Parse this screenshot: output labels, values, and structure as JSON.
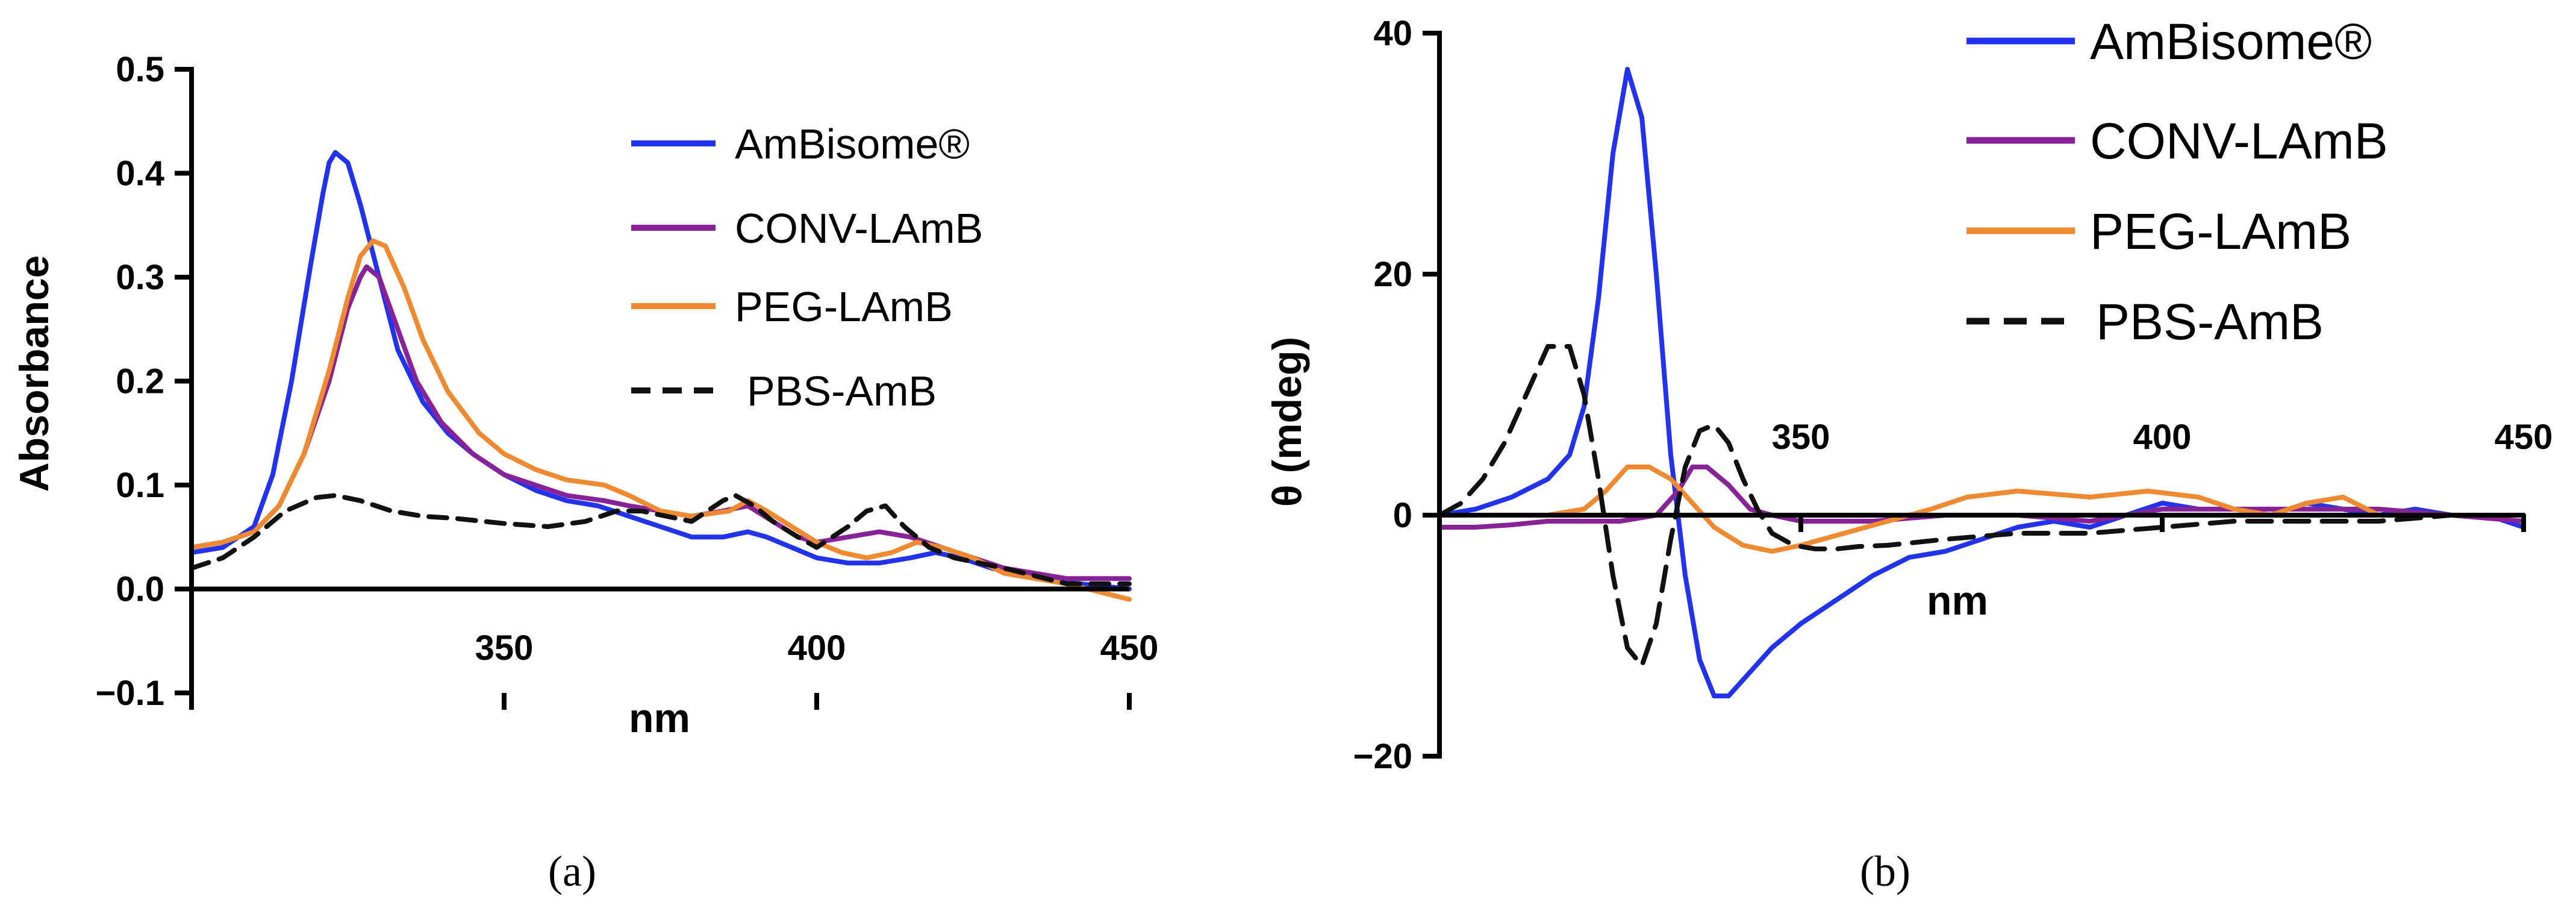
{
  "chart_data": [
    {
      "type": "line",
      "panel_label": "(a)",
      "xlabel": "nm",
      "ylabel": "Absorbance",
      "xlim": [
        300,
        450
      ],
      "ylim": [
        -0.1,
        0.5
      ],
      "xticks": [
        350,
        400,
        450
      ],
      "yticks": [
        -0.1,
        0.0,
        0.1,
        0.2,
        0.3,
        0.4,
        0.5
      ],
      "ytick_labels": [
        "−0.1",
        "0.0",
        "0.1",
        "0.2",
        "0.3",
        "0.4",
        "0.5"
      ],
      "legend_position": "top-right",
      "series": [
        {
          "name": "AmBisome®",
          "color": "#2233ee",
          "dash": "solid",
          "x": [
            300,
            305,
            310,
            313,
            316,
            319,
            321,
            322,
            323,
            325,
            327,
            330,
            333,
            337,
            341,
            345,
            350,
            355,
            360,
            365,
            370,
            375,
            380,
            385,
            389,
            392,
            396,
            400,
            405,
            410,
            415,
            419,
            423,
            428,
            435,
            442,
            450
          ],
          "y": [
            0.035,
            0.04,
            0.06,
            0.11,
            0.2,
            0.31,
            0.38,
            0.41,
            0.42,
            0.41,
            0.37,
            0.3,
            0.23,
            0.18,
            0.15,
            0.13,
            0.11,
            0.095,
            0.085,
            0.08,
            0.07,
            0.06,
            0.05,
            0.05,
            0.055,
            0.05,
            0.04,
            0.03,
            0.025,
            0.025,
            0.03,
            0.035,
            0.03,
            0.02,
            0.01,
            0.005,
            0.0
          ]
        },
        {
          "name": "CONV-LAmB",
          "color": "#882299",
          "dash": "solid",
          "x": [
            300,
            305,
            310,
            314,
            318,
            322,
            325,
            327,
            328,
            330,
            333,
            336,
            340,
            345,
            350,
            355,
            360,
            366,
            370,
            375,
            380,
            385,
            389,
            393,
            397,
            400,
            405,
            410,
            415,
            420,
            425,
            430,
            440,
            450
          ],
          "y": [
            0.04,
            0.045,
            0.055,
            0.08,
            0.13,
            0.2,
            0.27,
            0.3,
            0.31,
            0.3,
            0.25,
            0.2,
            0.16,
            0.13,
            0.11,
            0.1,
            0.09,
            0.085,
            0.08,
            0.075,
            0.07,
            0.075,
            0.08,
            0.065,
            0.05,
            0.045,
            0.05,
            0.055,
            0.05,
            0.04,
            0.03,
            0.02,
            0.01,
            0.01
          ]
        },
        {
          "name": "PEG-LAmB",
          "color": "#f08a30",
          "dash": "solid",
          "x": [
            300,
            305,
            310,
            314,
            318,
            322,
            325,
            327,
            329,
            331,
            334,
            337,
            341,
            346,
            350,
            355,
            360,
            366,
            370,
            375,
            380,
            386,
            389,
            392,
            396,
            400,
            404,
            408,
            412,
            416,
            420,
            425,
            430,
            440,
            450
          ],
          "y": [
            0.04,
            0.045,
            0.055,
            0.08,
            0.13,
            0.21,
            0.28,
            0.32,
            0.335,
            0.33,
            0.29,
            0.24,
            0.19,
            0.15,
            0.13,
            0.115,
            0.105,
            0.1,
            0.09,
            0.075,
            0.07,
            0.075,
            0.085,
            0.075,
            0.06,
            0.045,
            0.035,
            0.03,
            0.035,
            0.045,
            0.04,
            0.03,
            0.015,
            0.005,
            -0.01
          ]
        },
        {
          "name": "PBS-AmB",
          "color": "#111111",
          "dash": "dashed",
          "x": [
            300,
            305,
            310,
            315,
            320,
            323,
            327,
            332,
            337,
            342,
            350,
            357,
            363,
            368,
            372,
            376,
            380,
            385,
            387,
            390,
            393,
            397,
            400,
            405,
            408,
            411,
            414,
            418,
            422,
            430,
            440,
            450
          ],
          "y": [
            0.02,
            0.03,
            0.05,
            0.075,
            0.088,
            0.09,
            0.085,
            0.075,
            0.07,
            0.068,
            0.063,
            0.06,
            0.065,
            0.075,
            0.075,
            0.07,
            0.065,
            0.085,
            0.09,
            0.08,
            0.065,
            0.05,
            0.04,
            0.06,
            0.075,
            0.08,
            0.06,
            0.04,
            0.03,
            0.02,
            0.005,
            0.005
          ]
        }
      ]
    },
    {
      "type": "line",
      "panel_label": "(b)",
      "xlabel": "nm",
      "ylabel": "θ (mdeg)",
      "xlim": [
        300,
        450
      ],
      "ylim": [
        -20,
        40
      ],
      "xticks": [
        350,
        400,
        450
      ],
      "yticks": [
        -20,
        0,
        20,
        40
      ],
      "ytick_labels": [
        "−20",
        "0",
        "20",
        "40"
      ],
      "legend_position": "top-right",
      "series": [
        {
          "name": "AmBisome®",
          "color": "#2233ee",
          "dash": "solid",
          "x": [
            300,
            305,
            310,
            315,
            318,
            320,
            322,
            324,
            326,
            328,
            330,
            332,
            334,
            336,
            338,
            340,
            343,
            346,
            350,
            355,
            360,
            365,
            370,
            375,
            380,
            385,
            390,
            395,
            400,
            405,
            410,
            415,
            420,
            425,
            430,
            435,
            440,
            445,
            450
          ],
          "y": [
            0,
            0.5,
            1.5,
            3,
            5,
            9,
            18,
            30,
            37,
            33,
            20,
            5,
            -5,
            -12,
            -15,
            -15,
            -13,
            -11,
            -9,
            -7,
            -5,
            -3.5,
            -3,
            -2,
            -1,
            -0.5,
            -1,
            0,
            1,
            0.5,
            0.5,
            0,
            1,
            0.5,
            0,
            0.5,
            0,
            0,
            -1
          ]
        },
        {
          "name": "CONV-LAmB",
          "color": "#882299",
          "dash": "solid",
          "x": [
            300,
            305,
            310,
            315,
            320,
            325,
            330,
            333,
            335,
            337,
            340,
            343,
            346,
            350,
            360,
            370,
            380,
            390,
            400,
            410,
            420,
            430,
            440,
            450
          ],
          "y": [
            -1,
            -1,
            -0.8,
            -0.5,
            -0.5,
            -0.5,
            0,
            2,
            4,
            4,
            2.5,
            0.5,
            0,
            -0.5,
            -0.5,
            0,
            0,
            -0.5,
            0.5,
            0.5,
            0.5,
            0.5,
            0,
            -0.5
          ]
        },
        {
          "name": "PEG-LAmB",
          "color": "#f08a30",
          "dash": "solid",
          "x": [
            300,
            305,
            310,
            315,
            320,
            323,
            326,
            329,
            332,
            335,
            338,
            342,
            346,
            350,
            356,
            362,
            368,
            373,
            380,
            390,
            398,
            405,
            410,
            415,
            420,
            425,
            430,
            440,
            450
          ],
          "y": [
            0,
            0,
            0,
            0,
            0.5,
            2,
            4,
            4,
            3,
            1,
            -1,
            -2.5,
            -3,
            -2.5,
            -1.5,
            -0.5,
            0.5,
            1.5,
            2,
            1.5,
            2,
            1.5,
            0.5,
            0,
            1,
            1.5,
            0,
            0,
            0
          ]
        },
        {
          "name": "PBS-AmB",
          "color": "#111111",
          "dash": "dashed",
          "x": [
            300,
            303,
            306,
            309,
            312,
            315,
            318,
            320,
            322,
            324,
            326,
            328,
            330,
            332,
            334,
            336,
            338,
            340,
            342,
            344,
            346,
            349,
            352,
            355,
            358,
            362,
            370,
            380,
            390,
            400,
            410,
            420,
            430,
            440,
            450
          ],
          "y": [
            0,
            1,
            3,
            6,
            10,
            14,
            14,
            10,
            3,
            -5,
            -11,
            -12.5,
            -9,
            -2,
            4,
            7,
            7.5,
            6,
            3,
            0.5,
            -1.5,
            -2.5,
            -2.8,
            -2.8,
            -2.6,
            -2.5,
            -2,
            -1.5,
            -1.5,
            -1,
            -0.5,
            -0.5,
            -0.5,
            0,
            0
          ]
        }
      ]
    }
  ]
}
